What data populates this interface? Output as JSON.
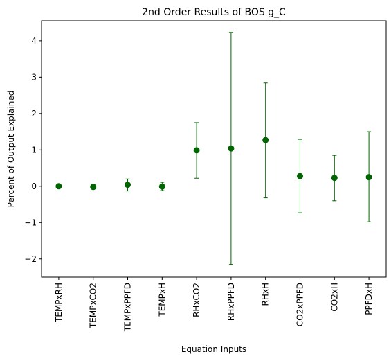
{
  "chart_data": {
    "type": "scatter",
    "title": "2nd Order Results of BOS g_C",
    "xlabel": "Equation Inputs",
    "ylabel": "Percent of Output Explained",
    "categories": [
      "TEMPxRH",
      "TEMPxCO2",
      "TEMPxPPFD",
      "TEMPxH",
      "RHxCO2",
      "RHxPPFD",
      "RHxH",
      "CO2xPPFD",
      "CO2xH",
      "PPFDxH"
    ],
    "values": [
      0.0,
      -0.02,
      0.04,
      -0.01,
      0.99,
      1.04,
      1.27,
      0.28,
      0.23,
      0.25
    ],
    "error_low": [
      0.0,
      -0.07,
      -0.13,
      -0.12,
      0.22,
      -2.15,
      -0.32,
      -0.73,
      -0.4,
      -0.98
    ],
    "error_high": [
      0.0,
      0.05,
      0.2,
      0.11,
      1.75,
      4.23,
      2.84,
      1.29,
      0.85,
      1.5
    ],
    "ylim": [
      -2.5,
      4.55
    ],
    "yticks": [
      -2,
      -1,
      0,
      1,
      2,
      3,
      4
    ],
    "ytick_labels": [
      "−2",
      "−1",
      "0",
      "1",
      "2",
      "3",
      "4"
    ],
    "grid": false,
    "color": "#006400"
  }
}
